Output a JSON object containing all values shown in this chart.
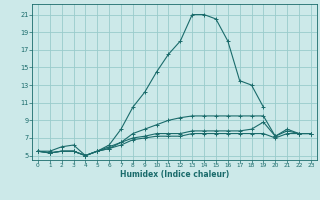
{
  "xlabel": "Humidex (Indice chaleur)",
  "ylabel": "",
  "bg_color": "#cce9e9",
  "grid_color": "#99cccc",
  "line_color": "#1a6b6b",
  "xlim": [
    -0.5,
    23.5
  ],
  "ylim": [
    4.5,
    22.2
  ],
  "xticks": [
    0,
    1,
    2,
    3,
    4,
    5,
    6,
    7,
    8,
    9,
    10,
    11,
    12,
    13,
    14,
    15,
    16,
    17,
    18,
    19,
    20,
    21,
    22,
    23
  ],
  "yticks": [
    5,
    7,
    9,
    11,
    13,
    15,
    17,
    19,
    21
  ],
  "series": [
    {
      "x": [
        0,
        1,
        2,
        3,
        4,
        5,
        6,
        7,
        8,
        9,
        10,
        11,
        12,
        13,
        14,
        15,
        16,
        17,
        18,
        19
      ],
      "y": [
        5.5,
        5.5,
        6.0,
        6.2,
        5.0,
        5.5,
        6.2,
        8.0,
        10.5,
        12.2,
        14.5,
        16.5,
        18.0,
        21.0,
        21.0,
        20.5,
        18.0,
        13.5,
        13.0,
        10.5
      ]
    },
    {
      "x": [
        0,
        1,
        2,
        3,
        4,
        5,
        6,
        7,
        8,
        9,
        10,
        11,
        12,
        13,
        14,
        15,
        16,
        17,
        18,
        19,
        20,
        21,
        22,
        23
      ],
      "y": [
        5.5,
        5.3,
        5.5,
        5.5,
        5.0,
        5.5,
        5.8,
        6.5,
        7.5,
        8.0,
        8.5,
        9.0,
        9.3,
        9.5,
        9.5,
        9.5,
        9.5,
        9.5,
        9.5,
        9.5,
        7.2,
        8.0,
        7.5,
        7.5
      ]
    },
    {
      "x": [
        0,
        1,
        2,
        3,
        4,
        5,
        6,
        7,
        8,
        9,
        10,
        11,
        12,
        13,
        14,
        15,
        16,
        17,
        18,
        19,
        20,
        21,
        22,
        23
      ],
      "y": [
        5.5,
        5.3,
        5.5,
        5.5,
        5.0,
        5.5,
        6.0,
        6.5,
        7.0,
        7.2,
        7.5,
        7.5,
        7.5,
        7.8,
        7.8,
        7.8,
        7.8,
        7.8,
        8.0,
        8.8,
        7.2,
        7.8,
        7.5,
        7.5
      ]
    },
    {
      "x": [
        0,
        1,
        2,
        3,
        4,
        5,
        6,
        7,
        8,
        9,
        10,
        11,
        12,
        13,
        14,
        15,
        16,
        17,
        18,
        19,
        20,
        21,
        22,
        23
      ],
      "y": [
        5.5,
        5.3,
        5.5,
        5.5,
        5.0,
        5.5,
        5.8,
        6.2,
        6.8,
        7.0,
        7.2,
        7.2,
        7.2,
        7.5,
        7.5,
        7.5,
        7.5,
        7.5,
        7.5,
        7.5,
        7.0,
        7.5,
        7.5,
        7.5
      ]
    }
  ]
}
